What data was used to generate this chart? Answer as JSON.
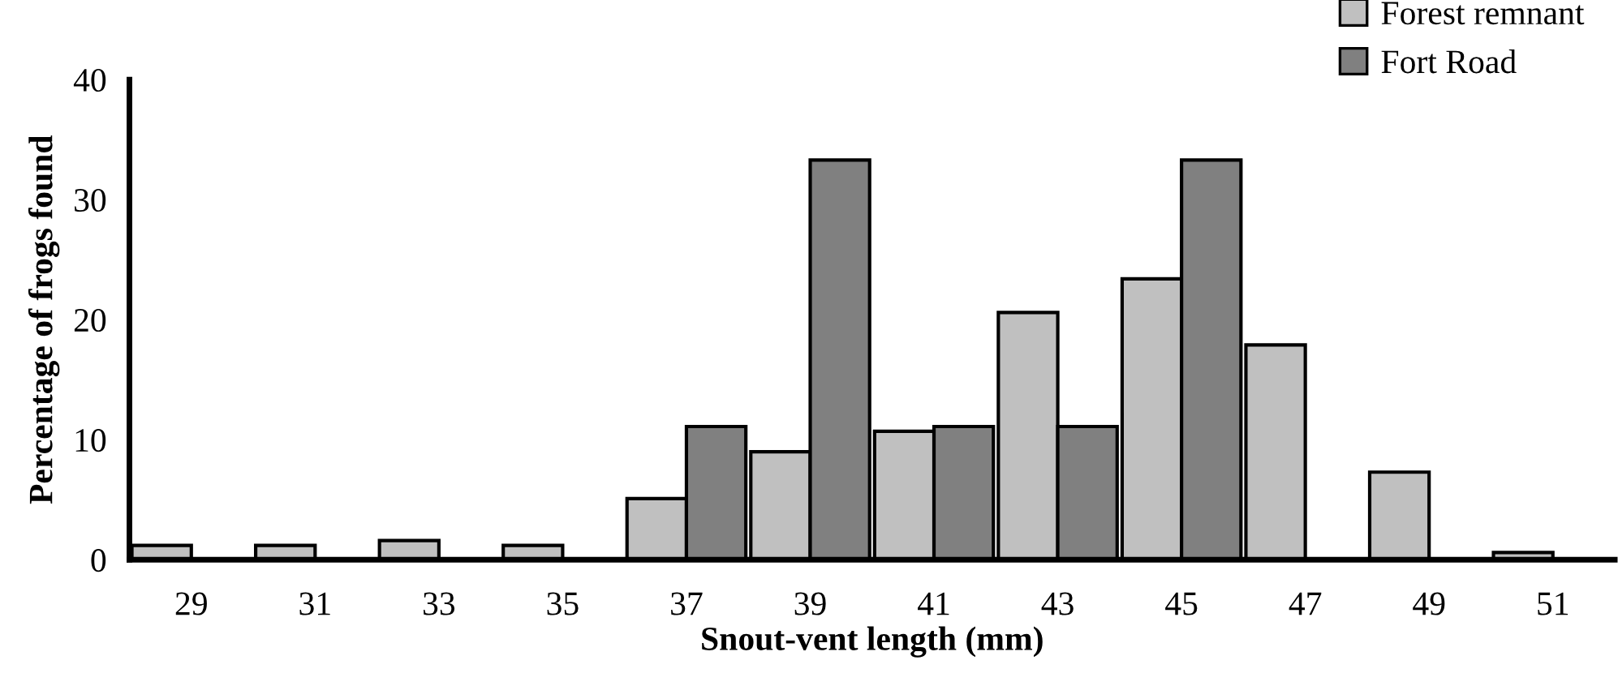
{
  "chart_data": {
    "type": "bar",
    "xlabel": "Snout-vent length (mm)",
    "ylabel": "Percentage of frogs found",
    "categories": [
      "29",
      "31",
      "33",
      "35",
      "37",
      "39",
      "41",
      "43",
      "45",
      "47",
      "49",
      "51"
    ],
    "series": [
      {
        "name": "Forest remnant",
        "color": "#c0c0c0",
        "values": [
          1.2,
          1.2,
          1.6,
          1.2,
          5.1,
          9.0,
          10.7,
          20.6,
          23.4,
          17.9,
          7.3,
          0.6
        ]
      },
      {
        "name": "Fort Road",
        "color": "#808080",
        "values": [
          0,
          0,
          0,
          0,
          11.1,
          33.3,
          11.1,
          11.1,
          33.3,
          0,
          0,
          0
        ]
      }
    ],
    "ylim": [
      0,
      40
    ],
    "yticks": [
      0,
      10,
      20,
      30,
      40
    ],
    "grid": false,
    "legend": "top right"
  }
}
